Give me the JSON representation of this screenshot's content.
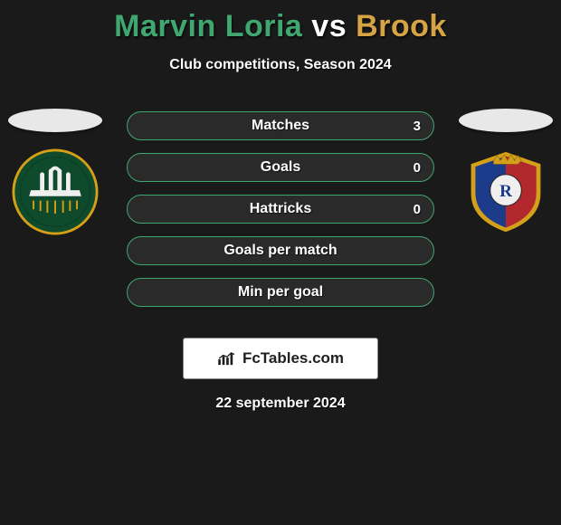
{
  "title": {
    "player1": "Marvin Loria",
    "vs": "vs",
    "player2": "Brook"
  },
  "subtitle": "Club competitions, Season 2024",
  "colors": {
    "p1": "#3fa76f",
    "p2": "#d6a445",
    "row_bg": "#2a2a2a",
    "bg": "#1a1a1a",
    "oval": "#e8e8e8"
  },
  "stat_rows": [
    {
      "label": "Matches",
      "left": "",
      "right": "3",
      "border": "#3fa76f"
    },
    {
      "label": "Goals",
      "left": "",
      "right": "0",
      "border": "#3fa76f"
    },
    {
      "label": "Hattricks",
      "left": "",
      "right": "0",
      "border": "#3fa76f"
    },
    {
      "label": "Goals per match",
      "left": "",
      "right": "",
      "border": "#3fa76f"
    },
    {
      "label": "Min per goal",
      "left": "",
      "right": "",
      "border": "#3fa76f"
    }
  ],
  "crests": {
    "left": {
      "name": "portland-timbers-crest",
      "bg": "#0e4a2b",
      "accent": "#d4a017"
    },
    "right": {
      "name": "real-salt-lake-crest",
      "bg": "#1c3b8b",
      "accent": "#d4a017",
      "secondary": "#b3282d"
    }
  },
  "attribution": "FcTables.com",
  "date": "22 september 2024"
}
